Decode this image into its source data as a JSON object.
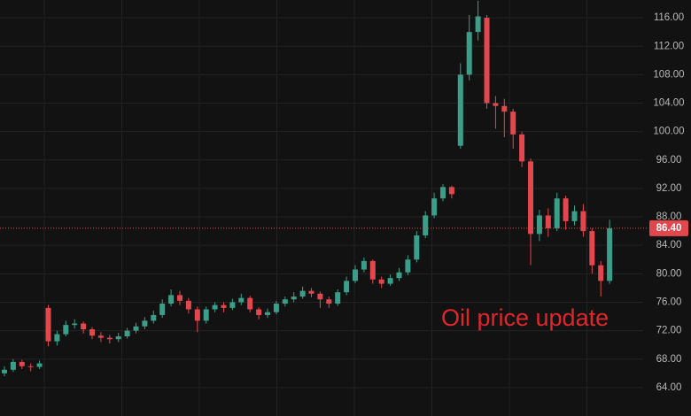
{
  "chart_data": {
    "type": "candlestick",
    "annotation": "Oil price update",
    "last_price": {
      "value": 86.4,
      "label": "86.40"
    },
    "ylim": [
      60,
      118.5
    ],
    "yticks": [
      {
        "value": 64,
        "label": "64.00"
      },
      {
        "value": 68,
        "label": "68.00"
      },
      {
        "value": 72,
        "label": "72.00"
      },
      {
        "value": 76,
        "label": "76.00"
      },
      {
        "value": 80,
        "label": "80.00"
      },
      {
        "value": 84,
        "label": "84.00"
      },
      {
        "value": 88,
        "label": "88.00"
      },
      {
        "value": 92,
        "label": "92.00"
      },
      {
        "value": 96,
        "label": "96.00"
      },
      {
        "value": 100,
        "label": "100.00"
      },
      {
        "value": 104,
        "label": "104.00"
      },
      {
        "value": 108,
        "label": "108.00"
      },
      {
        "value": 112,
        "label": "112.00"
      },
      {
        "value": 116,
        "label": "116.00"
      }
    ],
    "grid": true,
    "up_color": "#3a9e88",
    "down_color": "#e2474e",
    "open": [
      66.0,
      66.5,
      67.6,
      67.0,
      66.9,
      75.2,
      70.5,
      71.5,
      72.8,
      73.0,
      72.2,
      71.3,
      71.0,
      70.8,
      71.2,
      72.0,
      72.6,
      73.4,
      74.2,
      75.8,
      77.0,
      76.2,
      75.0,
      73.4,
      75.0,
      75.6,
      75.2,
      76.0,
      76.6,
      75.0,
      74.2,
      74.6,
      75.8,
      76.4,
      76.8,
      77.6,
      77.2,
      76.4,
      75.8,
      77.4,
      79.0,
      80.6,
      81.8,
      79.2,
      78.6,
      79.4,
      80.2,
      82.0,
      85.4,
      88.2,
      90.6,
      92.2,
      98.0,
      108.0,
      114.0,
      116.0,
      104.0,
      103.6,
      102.8,
      99.6,
      95.8,
      85.6,
      88.2,
      86.4,
      90.6,
      87.4,
      88.8,
      86.0,
      81.2,
      79.0
    ],
    "high": [
      67.0,
      68.0,
      67.9,
      67.4,
      67.8,
      75.6,
      72.0,
      73.4,
      73.6,
      73.3,
      72.5,
      71.8,
      71.4,
      71.7,
      72.4,
      73.1,
      73.9,
      74.8,
      76.4,
      77.8,
      77.6,
      76.6,
      75.4,
      75.4,
      76.0,
      76.0,
      76.5,
      77.2,
      76.9,
      75.3,
      75.1,
      76.2,
      76.8,
      77.4,
      78.2,
      78.0,
      77.5,
      76.8,
      77.8,
      79.6,
      81.2,
      82.3,
      82.0,
      79.6,
      79.9,
      80.8,
      82.6,
      86.0,
      88.8,
      91.4,
      92.6,
      92.4,
      109.6,
      116.4,
      118.4,
      116.4,
      105.0,
      104.6,
      103.2,
      100.0,
      96.2,
      89.0,
      89.2,
      91.4,
      91.0,
      89.6,
      89.8,
      86.4,
      81.8,
      87.6
    ],
    "low": [
      65.6,
      66.2,
      66.6,
      66.3,
      66.6,
      69.8,
      69.9,
      71.2,
      72.3,
      71.6,
      70.8,
      70.4,
      70.2,
      70.4,
      70.9,
      71.6,
      72.2,
      73.0,
      73.8,
      75.4,
      75.6,
      74.4,
      71.8,
      73.0,
      74.6,
      74.6,
      74.9,
      75.6,
      74.6,
      73.6,
      73.8,
      74.3,
      75.4,
      76.0,
      76.5,
      76.7,
      75.2,
      75.2,
      75.5,
      77.0,
      78.7,
      80.2,
      78.6,
      78.0,
      78.3,
      79.0,
      79.8,
      81.6,
      85.0,
      87.8,
      90.2,
      90.6,
      97.6,
      107.2,
      112.8,
      103.2,
      100.4,
      99.2,
      97.6,
      95.0,
      81.2,
      84.6,
      85.2,
      86.0,
      86.2,
      86.8,
      85.2,
      80.0,
      76.8,
      78.6
    ],
    "close": [
      66.5,
      67.6,
      67.0,
      66.9,
      67.4,
      70.5,
      71.5,
      72.8,
      73.0,
      72.2,
      71.3,
      71.0,
      70.8,
      71.2,
      72.0,
      72.6,
      73.4,
      74.2,
      75.8,
      77.0,
      76.2,
      75.0,
      73.4,
      75.0,
      75.6,
      75.2,
      76.0,
      76.6,
      75.0,
      74.2,
      74.6,
      75.8,
      76.4,
      76.8,
      77.6,
      77.2,
      76.4,
      75.8,
      77.4,
      79.0,
      80.6,
      81.8,
      79.2,
      78.6,
      79.4,
      80.2,
      82.0,
      85.4,
      88.2,
      90.6,
      92.2,
      91.2,
      108.0,
      114.0,
      116.2,
      104.0,
      103.6,
      102.8,
      99.6,
      95.8,
      85.6,
      88.2,
      86.4,
      90.6,
      87.4,
      88.8,
      86.0,
      81.2,
      79.0,
      86.4
    ]
  }
}
